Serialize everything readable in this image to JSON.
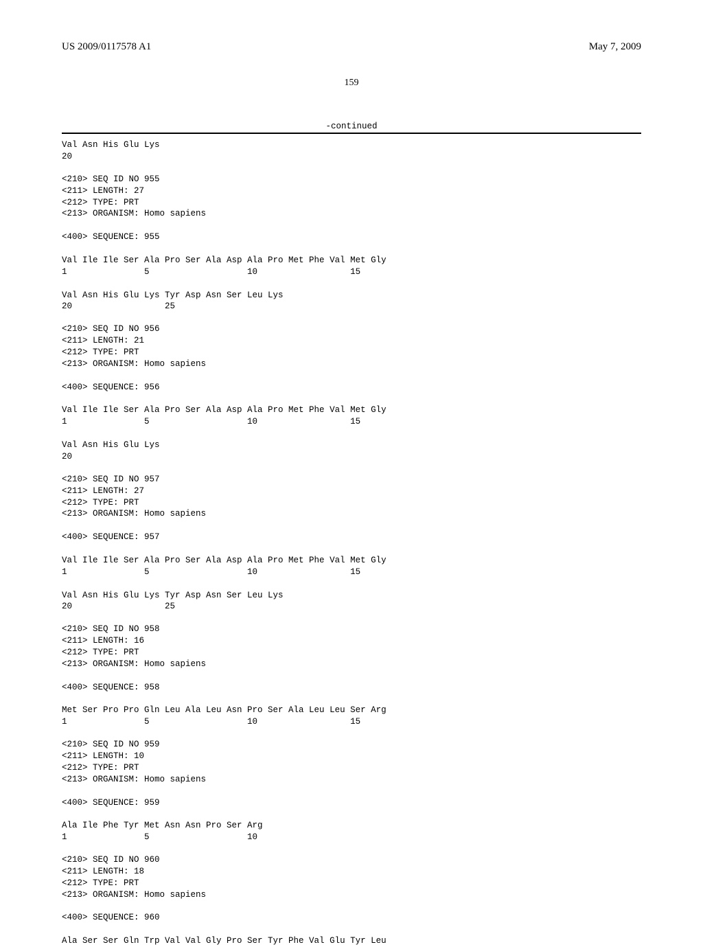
{
  "header": {
    "left": "US 2009/0117578 A1",
    "right": "May 7, 2009"
  },
  "page_number": "159",
  "continued_label": "-continued",
  "sequences": [
    {
      "lines": [
        "Val Asn His Glu Lys",
        "20"
      ]
    },
    {
      "lines": [
        "<210> SEQ ID NO 955",
        "<211> LENGTH: 27",
        "<212> TYPE: PRT",
        "<213> ORGANISM: Homo sapiens",
        "",
        "<400> SEQUENCE: 955",
        "",
        "Val Ile Ile Ser Ala Pro Ser Ala Asp Ala Pro Met Phe Val Met Gly",
        "1               5                   10                  15",
        "",
        "Val Asn His Glu Lys Tyr Asp Asn Ser Leu Lys",
        "20                  25"
      ]
    },
    {
      "lines": [
        "<210> SEQ ID NO 956",
        "<211> LENGTH: 21",
        "<212> TYPE: PRT",
        "<213> ORGANISM: Homo sapiens",
        "",
        "<400> SEQUENCE: 956",
        "",
        "Val Ile Ile Ser Ala Pro Ser Ala Asp Ala Pro Met Phe Val Met Gly",
        "1               5                   10                  15",
        "",
        "Val Asn His Glu Lys",
        "20"
      ]
    },
    {
      "lines": [
        "<210> SEQ ID NO 957",
        "<211> LENGTH: 27",
        "<212> TYPE: PRT",
        "<213> ORGANISM: Homo sapiens",
        "",
        "<400> SEQUENCE: 957",
        "",
        "Val Ile Ile Ser Ala Pro Ser Ala Asp Ala Pro Met Phe Val Met Gly",
        "1               5                   10                  15",
        "",
        "Val Asn His Glu Lys Tyr Asp Asn Ser Leu Lys",
        "20                  25"
      ]
    },
    {
      "lines": [
        "<210> SEQ ID NO 958",
        "<211> LENGTH: 16",
        "<212> TYPE: PRT",
        "<213> ORGANISM: Homo sapiens",
        "",
        "<400> SEQUENCE: 958",
        "",
        "Met Ser Pro Pro Gln Leu Ala Leu Asn Pro Ser Ala Leu Leu Ser Arg",
        "1               5                   10                  15"
      ]
    },
    {
      "lines": [
        "<210> SEQ ID NO 959",
        "<211> LENGTH: 10",
        "<212> TYPE: PRT",
        "<213> ORGANISM: Homo sapiens",
        "",
        "<400> SEQUENCE: 959",
        "",
        "Ala Ile Phe Tyr Met Asn Asn Pro Ser Arg",
        "1               5                   10"
      ]
    },
    {
      "lines": [
        "<210> SEQ ID NO 960",
        "<211> LENGTH: 18",
        "<212> TYPE: PRT",
        "<213> ORGANISM: Homo sapiens",
        "",
        "<400> SEQUENCE: 960",
        "",
        "Ala Ser Ser Gln Trp Val Val Gly Pro Ser Tyr Phe Val Glu Tyr Leu"
      ]
    }
  ]
}
